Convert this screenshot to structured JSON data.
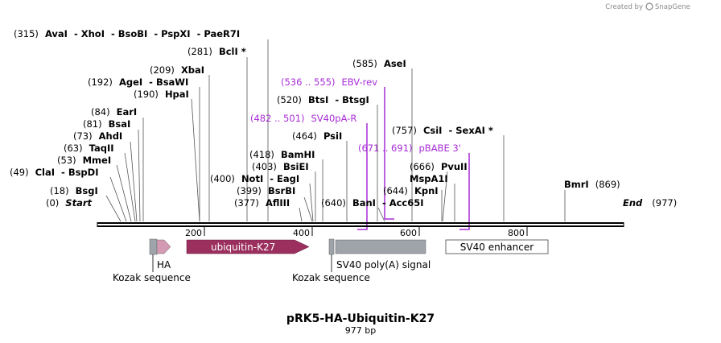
{
  "credit": {
    "text": "Created by",
    "brand": "SnapGene"
  },
  "plasmid": {
    "name": "pRK5-HA-Ubiquitin-K27",
    "length_label": "977 bp",
    "length": 977
  },
  "ruler": {
    "ticks": [
      "200",
      "400",
      "600",
      "800"
    ]
  },
  "sites": [
    {
      "pos": "(315)",
      "names": [
        "AvaI",
        "XhoI",
        "BsoBI",
        "PspXI",
        "PaeR7I"
      ]
    },
    {
      "pos": "(281)",
      "names": [
        "BclI *"
      ]
    },
    {
      "pos": "(209)",
      "names": [
        "XbaI"
      ]
    },
    {
      "pos": "(192)",
      "names": [
        "AgeI",
        "BsaWI"
      ]
    },
    {
      "pos": "(190)",
      "names": [
        "HpaI"
      ]
    },
    {
      "pos": "(84)",
      "names": [
        "EarI"
      ]
    },
    {
      "pos": "(81)",
      "names": [
        "BsaI"
      ]
    },
    {
      "pos": "(73)",
      "names": [
        "AhdI"
      ]
    },
    {
      "pos": "(63)",
      "names": [
        "TaqII"
      ]
    },
    {
      "pos": "(53)",
      "names": [
        "MmeI"
      ]
    },
    {
      "pos": "(49)",
      "names": [
        "ClaI",
        "BspDI"
      ]
    },
    {
      "pos": "(18)",
      "names": [
        "BsgI"
      ]
    },
    {
      "pos": "(0)",
      "names": [
        "Start"
      ]
    },
    {
      "pos": "(585)",
      "names": [
        "AseI"
      ]
    },
    {
      "pos": "(520)",
      "names": [
        "BtsI",
        "BtsgI"
      ]
    },
    {
      "pos": "(464)",
      "names": [
        "PsiI"
      ]
    },
    {
      "pos": "(418)",
      "names": [
        "BamHI"
      ]
    },
    {
      "pos": "(403)",
      "names": [
        "BsiEI"
      ]
    },
    {
      "pos": "(400)",
      "names": [
        "NotI",
        "EagI"
      ]
    },
    {
      "pos": "(399)",
      "names": [
        "BsrBI"
      ]
    },
    {
      "pos": "(377)",
      "names": [
        "AflIII"
      ]
    },
    {
      "pos": "(640)",
      "names": [
        "BanI",
        "Acc65I"
      ]
    },
    {
      "pos": "(644)",
      "names": [
        "KpnI"
      ]
    },
    {
      "pos": "(757)",
      "names": [
        "CsiI",
        "SexAI *"
      ]
    },
    {
      "pos": "(666)",
      "names": [
        "PvuII"
      ]
    },
    {
      "pos": "",
      "names": [
        "MspA1I"
      ]
    },
    {
      "pos": "(869)",
      "names": [
        "BmrI"
      ]
    },
    {
      "pos": "(977)",
      "names": [
        "End"
      ]
    }
  ],
  "primers": [
    {
      "range": "(536 .. 555)",
      "name": "EBV-rev"
    },
    {
      "range": "(482 .. 501)",
      "name": "SV40pA-R"
    },
    {
      "range": "(671 .. 691)",
      "name": "pBABE 3'"
    }
  ],
  "features": [
    {
      "name": "HA",
      "caption": "Kozak sequence"
    },
    {
      "name": "ubiquitin-K27",
      "caption": "Kozak sequence"
    },
    {
      "name": "SV40 poly(A) signal"
    },
    {
      "name": "SV40 enhancer"
    }
  ],
  "colors": {
    "ubiquitin": "#9b2f5e",
    "ha": "#d49ab4",
    "gray": "#9ea4aa",
    "primer": "#a72dd6",
    "backbone": "#000000"
  }
}
